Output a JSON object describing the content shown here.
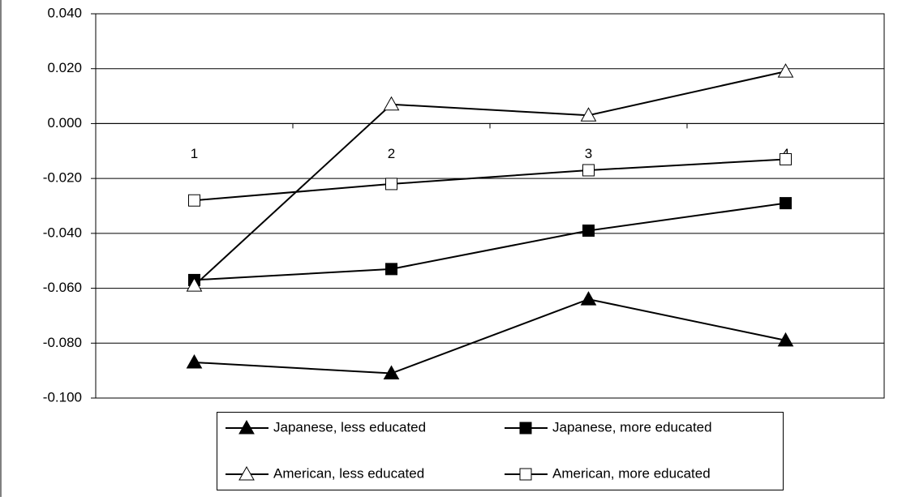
{
  "chart_data": {
    "type": "line",
    "categories": [
      "1",
      "2",
      "3",
      "4"
    ],
    "series": [
      {
        "name": "Japanese, less educated",
        "color": "#000000",
        "marker": "triangle",
        "marker_filled": true,
        "values": [
          -0.087,
          -0.091,
          -0.064,
          -0.079
        ]
      },
      {
        "name": "Japanese, more educated",
        "color": "#000000",
        "marker": "square",
        "marker_filled": true,
        "values": [
          -0.057,
          -0.053,
          -0.039,
          -0.029
        ]
      },
      {
        "name": "American, less educated",
        "color": "#000000",
        "marker": "triangle",
        "marker_filled": false,
        "values": [
          -0.059,
          0.007,
          0.003,
          0.019
        ]
      },
      {
        "name": "American, more educated",
        "color": "#000000",
        "marker": "square",
        "marker_filled": false,
        "values": [
          -0.028,
          -0.022,
          -0.017,
          -0.013
        ]
      }
    ],
    "ylim": [
      -0.1,
      0.04
    ],
    "yticks": [
      {
        "value": -0.1,
        "label": "-0.100"
      },
      {
        "value": -0.08,
        "label": "-0.080"
      },
      {
        "value": -0.06,
        "label": "-0.060"
      },
      {
        "value": -0.04,
        "label": "-0.040"
      },
      {
        "value": -0.02,
        "label": "-0.020"
      },
      {
        "value": 0,
        "label": "0.000"
      },
      {
        "value": 0.02,
        "label": "0.020"
      },
      {
        "value": 0.04,
        "label": "0.040"
      }
    ],
    "grid": true,
    "legend": "bottom"
  }
}
